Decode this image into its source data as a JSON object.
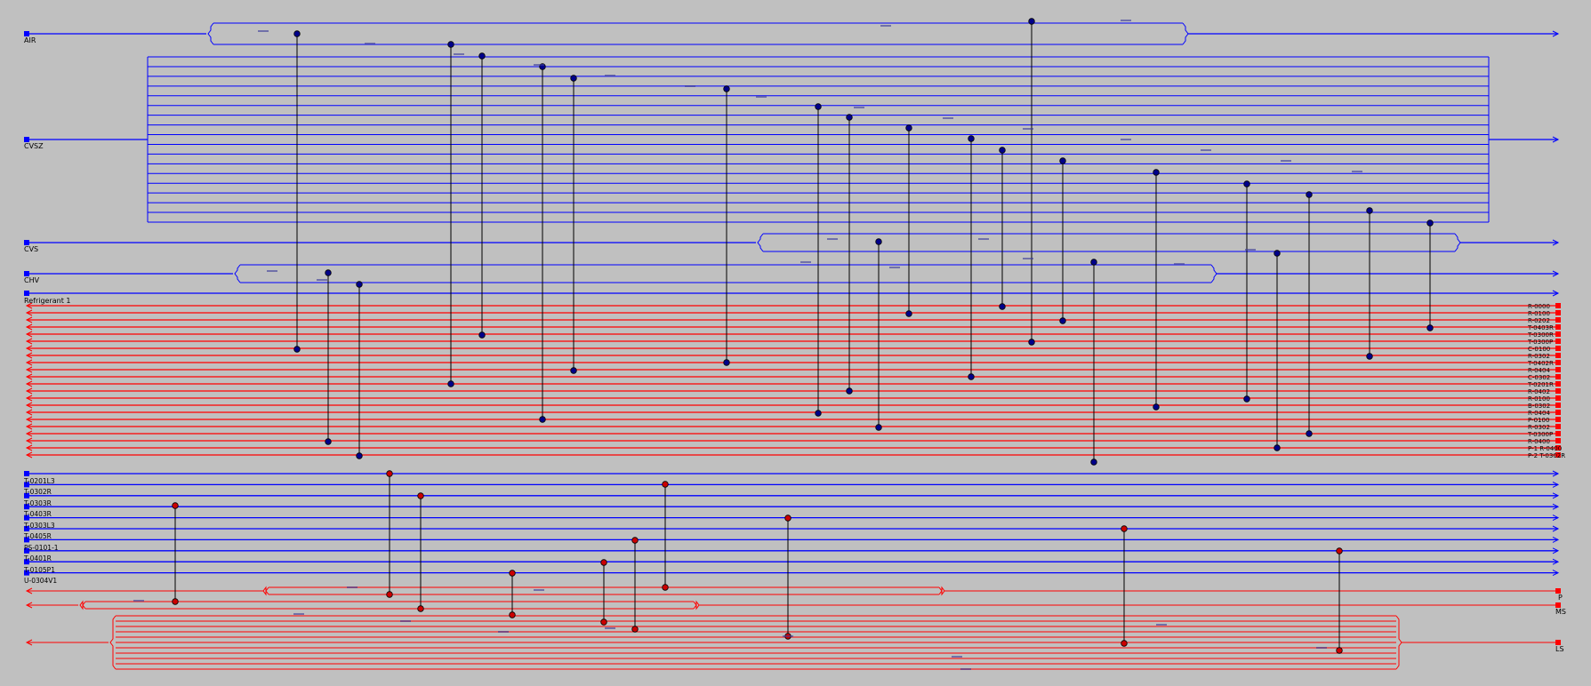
{
  "diagram": {
    "background": "#c0c0c0",
    "colors": {
      "cold": "#0000ff",
      "hot": "#ff0000",
      "exchanger_line": "#000000",
      "cold_node": "#00008b",
      "hot_node": "#cc0000"
    },
    "cold_streams": [
      {
        "id": "air",
        "name": "AIR"
      },
      {
        "id": "cvsz",
        "name": "CVSZ"
      },
      {
        "id": "cvs",
        "name": "CVS"
      },
      {
        "id": "chv",
        "name": "CHV"
      }
    ],
    "refrigerant_label": "Refrigerant 1",
    "refrigerant_right_labels": [
      "R-0000",
      "R-0100",
      "R-0202",
      "T-0403R",
      "T-0300R",
      "T-0300P",
      "C-0100",
      "R-0302",
      "T-0402R",
      "R-0404",
      "C-0302",
      "T-0201R",
      "R-0402",
      "R-0100",
      "B-0302",
      "R-0404",
      "P-0100",
      "R-0302",
      "T-0300P",
      "R-0400",
      "P-1 R-0400",
      "P-2 T-0302R"
    ],
    "hot_streams": [
      {
        "id": "h1",
        "left": "T-0201L3"
      },
      {
        "id": "h2",
        "left": "T-0302R"
      },
      {
        "id": "h3",
        "left": "T-0303R"
      },
      {
        "id": "h4",
        "left": "T-0403R"
      },
      {
        "id": "h5",
        "left": "T-0303L3"
      },
      {
        "id": "h6",
        "left": "T-0405R"
      },
      {
        "id": "h7",
        "left": "PS-0101-1"
      },
      {
        "id": "h8",
        "left": "T-0401R"
      },
      {
        "id": "h9",
        "left": "T-0105P1"
      },
      {
        "id": "h10",
        "left": "U-0304V1"
      }
    ],
    "utility_hot": [
      {
        "id": "u1",
        "right": "P"
      },
      {
        "id": "u2",
        "right": "MS"
      },
      {
        "id": "u3",
        "right": "LS"
      }
    ]
  }
}
